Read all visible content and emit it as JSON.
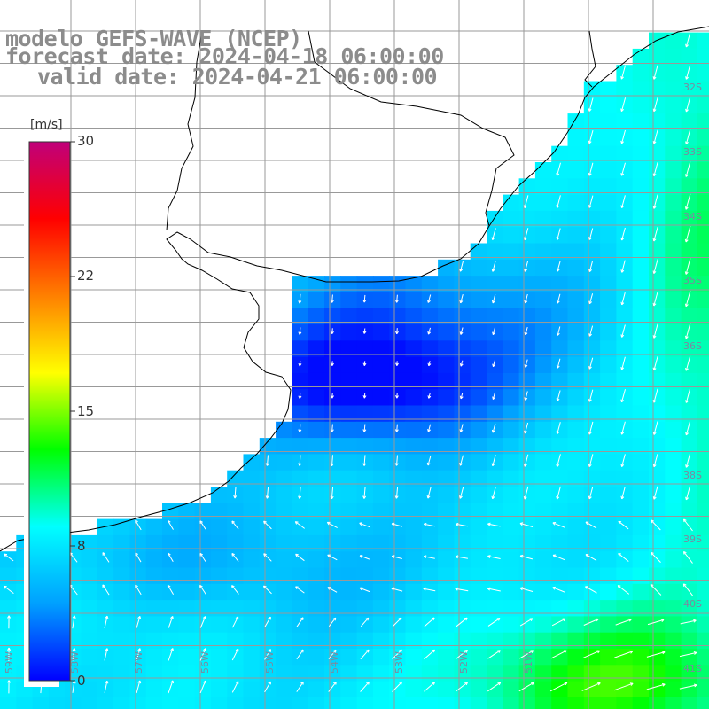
{
  "header": {
    "model_line": "modelo GEFS-WAVE (NCEP)",
    "forecast_line": "forecast date: 2024-04-18 06:00:00",
    "valid_line": "valid date: 2024-04-21 06:00:00"
  },
  "colorbar": {
    "unit": "[m/s]",
    "ticks": [
      "0",
      "8",
      "15",
      "22",
      "30"
    ],
    "min": 0,
    "max": 30,
    "colors": [
      "#0000ff",
      "#00a0ff",
      "#00ffff",
      "#00ff00",
      "#ffff00",
      "#ff8000",
      "#ff0000",
      "#c0007a"
    ]
  },
  "lat_labels": [
    "32S",
    "33S",
    "34S",
    "35S",
    "36S",
    "38S",
    "39S",
    "40S",
    "41S"
  ],
  "lon_labels": [
    "59W",
    "58W",
    "57W",
    "56W",
    "55W",
    "54W",
    "53W",
    "52W",
    "51W"
  ],
  "colors": {
    "grid": "#999999",
    "coast": "#000000",
    "title": "#8c8c8c"
  }
}
